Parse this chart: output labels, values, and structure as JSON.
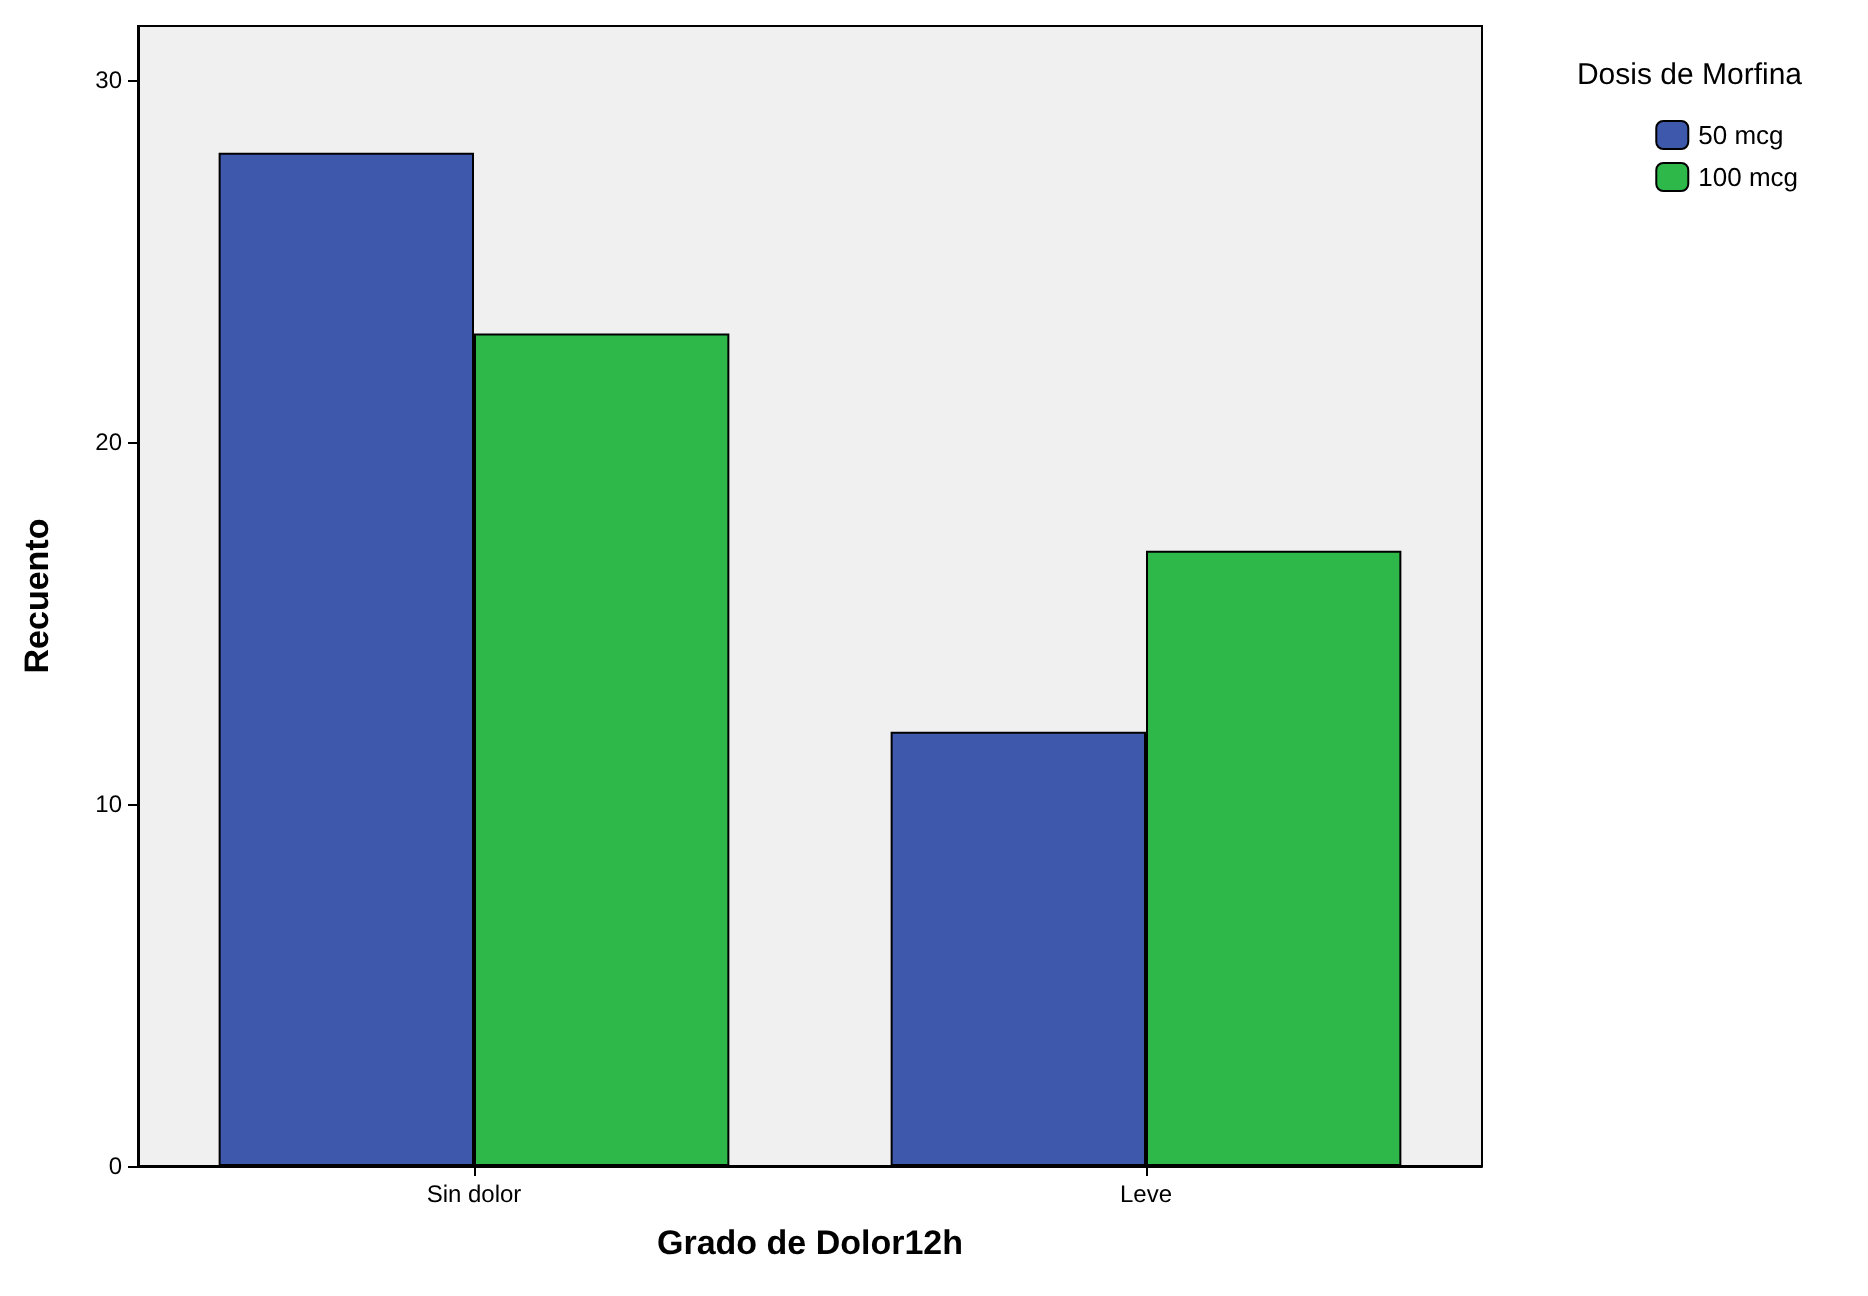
{
  "chart_data": {
    "type": "bar",
    "xlabel": "Grado de Dolor12h",
    "ylabel": "Recuento",
    "legend_title": "Dosis de Morfina",
    "categories": [
      "Sin dolor",
      "Leve"
    ],
    "series": [
      {
        "name": "50 mcg",
        "color": "#3e58ac",
        "values": [
          28,
          12
        ]
      },
      {
        "name": "100 mcg",
        "color": "#2eb84a",
        "values": [
          23,
          17
        ]
      }
    ],
    "ylim": [
      0,
      31.5
    ],
    "yticks": [
      0,
      10,
      20,
      30
    ],
    "grid": false,
    "legend": "top right"
  }
}
